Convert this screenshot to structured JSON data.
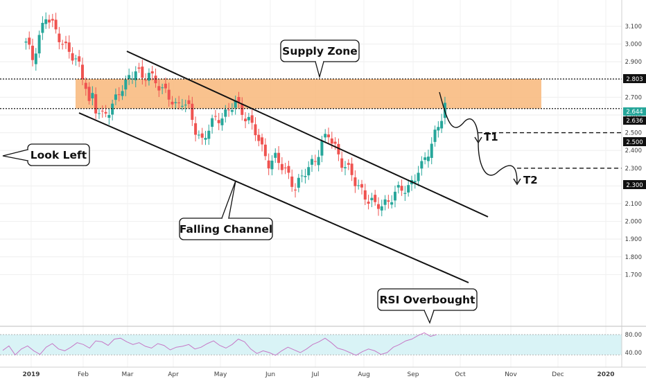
{
  "chart_data": {
    "type": "candlestick",
    "y_axis": {
      "ticks": [
        "3.100",
        "3.000",
        "2.900",
        "2.800",
        "2.700",
        "2.600",
        "2.500",
        "2.400",
        "2.300",
        "2.200",
        "2.100",
        "2.000",
        "1.900",
        "1.800",
        "1.700"
      ],
      "range": [
        1.62,
        3.16
      ]
    },
    "x_axis": {
      "labels": [
        "2019",
        "Feb",
        "Mar",
        "Apr",
        "May",
        "Jun",
        "Jul",
        "Aug",
        "Sep",
        "Oct",
        "Nov",
        "Dec",
        "2020"
      ]
    },
    "price_tags": {
      "supply_top": "2.803",
      "last_price": "2.644",
      "supply_bottom": "2.636",
      "target1": "2.500",
      "target2": "2.300"
    },
    "levels": {
      "supply_top": 2.803,
      "supply_bottom": 2.636,
      "target1": 2.5,
      "target2": 2.3
    },
    "path_points": [
      [
        1.5,
        3.0
      ],
      [
        2.0,
        2.92
      ],
      [
        2.5,
        3.05
      ],
      [
        3.0,
        3.15
      ],
      [
        3.5,
        3.1
      ],
      [
        4.0,
        3.05
      ],
      [
        4.5,
        2.98
      ],
      [
        5.0,
        2.92
      ],
      [
        5.5,
        2.88
      ],
      [
        6.0,
        2.78
      ],
      [
        6.3,
        2.66
      ],
      [
        6.7,
        2.7
      ],
      [
        7.0,
        2.62
      ],
      [
        7.5,
        2.6
      ],
      [
        8.0,
        2.64
      ],
      [
        8.5,
        2.68
      ],
      [
        9.0,
        2.75
      ],
      [
        9.5,
        2.82
      ],
      [
        10.0,
        2.86
      ],
      [
        10.5,
        2.79
      ],
      [
        11.0,
        2.84
      ],
      [
        11.5,
        2.8
      ],
      [
        12.0,
        2.73
      ],
      [
        12.5,
        2.7
      ],
      [
        13.0,
        2.66
      ],
      [
        13.5,
        2.68
      ],
      [
        14.0,
        2.62
      ],
      [
        14.5,
        2.52
      ],
      [
        15.0,
        2.46
      ],
      [
        15.5,
        2.52
      ],
      [
        16.0,
        2.57
      ],
      [
        16.5,
        2.6
      ],
      [
        17.0,
        2.63
      ],
      [
        17.5,
        2.66
      ],
      [
        18.0,
        2.62
      ],
      [
        18.5,
        2.58
      ],
      [
        19.0,
        2.5
      ],
      [
        19.5,
        2.4
      ],
      [
        20.0,
        2.34
      ],
      [
        20.5,
        2.36
      ],
      [
        21.0,
        2.3
      ],
      [
        21.5,
        2.26
      ],
      [
        22.0,
        2.2
      ],
      [
        22.5,
        2.24
      ],
      [
        23.0,
        2.3
      ],
      [
        23.5,
        2.36
      ],
      [
        24.0,
        2.44
      ],
      [
        24.5,
        2.48
      ],
      [
        25.0,
        2.42
      ],
      [
        25.5,
        2.34
      ],
      [
        26.0,
        2.28
      ],
      [
        26.5,
        2.22
      ],
      [
        27.0,
        2.18
      ],
      [
        27.5,
        2.12
      ],
      [
        28.0,
        2.08
      ],
      [
        28.5,
        2.1
      ],
      [
        29.0,
        2.12
      ],
      [
        29.5,
        2.15
      ],
      [
        30.0,
        2.18
      ],
      [
        30.5,
        2.2
      ],
      [
        31.0,
        2.25
      ],
      [
        31.5,
        2.3
      ],
      [
        32.0,
        2.4
      ],
      [
        32.5,
        2.5
      ],
      [
        33.0,
        2.58
      ],
      [
        33.4,
        2.64
      ]
    ],
    "rsi": {
      "ticks": [
        "80.00",
        "40.00"
      ],
      "values": [
        45,
        55,
        35,
        48,
        55,
        44,
        36,
        52,
        60,
        48,
        44,
        52,
        62,
        58,
        50,
        66,
        64,
        56,
        70,
        72,
        64,
        58,
        62,
        54,
        50,
        60,
        56,
        46,
        52,
        54,
        58,
        48,
        52,
        60,
        66,
        56,
        50,
        58,
        70,
        64,
        48,
        38,
        44,
        40,
        34,
        44,
        52,
        46,
        40,
        48,
        58,
        64,
        72,
        62,
        50,
        46,
        40,
        34,
        42,
        48,
        44,
        36,
        40,
        52,
        58,
        66,
        70,
        78,
        84,
        76,
        80
      ],
      "overbought": 80,
      "oversold": 35
    },
    "annotations": {
      "supply_zone": "Supply Zone",
      "look_left": "Look Left",
      "falling_channel": "Falling Channel",
      "rsi_overbought": "RSI Overbought",
      "t1": "T1",
      "t2": "T2"
    },
    "colors": {
      "up": "#26a69a",
      "down": "#ef5350",
      "supply_zone": "#f8b77a",
      "rsi_line": "#c678c6",
      "rsi_band": "#d9f3f6",
      "last_price_tag": "#26a69a"
    }
  }
}
